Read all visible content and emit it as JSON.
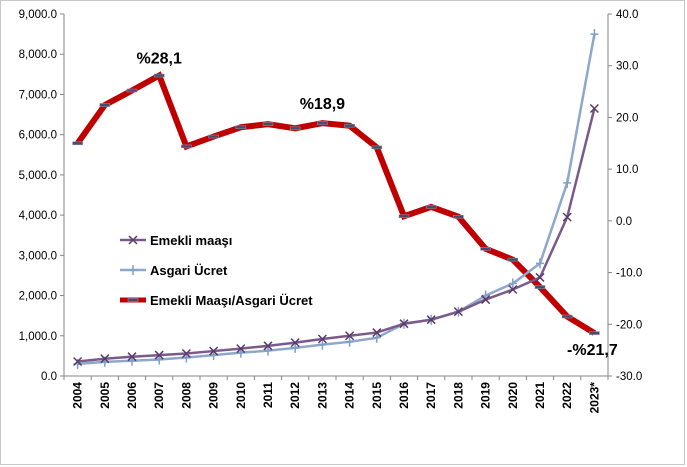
{
  "chart_data": {
    "type": "line",
    "categories": [
      "2004",
      "2005",
      "2006",
      "2007",
      "2008",
      "2009",
      "2010",
      "2011",
      "2012",
      "2013",
      "2014",
      "2015",
      "2016",
      "2017",
      "2018",
      "2019",
      "2020",
      "2021",
      "2022",
      "2023*"
    ],
    "left_axis": {
      "ylim": [
        0,
        9000
      ],
      "ticks": [
        "0.0",
        "1,000.0",
        "2,000.0",
        "3,000.0",
        "4,000.0",
        "5,000.0",
        "6,000.0",
        "7,000.0",
        "8,000.0",
        "9,000.0"
      ]
    },
    "right_axis": {
      "ylim": [
        -30,
        40
      ],
      "ticks": [
        "-30.0",
        "-20.0",
        "-10.0",
        "0.0",
        "10.0",
        "20.0",
        "30.0",
        "40.0"
      ]
    },
    "series": [
      {
        "name": "Emekli maaşı",
        "axis": "left",
        "color": "#7a5a8a",
        "marker": "x",
        "values": [
          360,
          430,
          480,
          520,
          560,
          620,
          680,
          750,
          830,
          920,
          1000,
          1080,
          1300,
          1400,
          1600,
          1900,
          2150,
          2450,
          3950,
          6650
        ]
      },
      {
        "name": "Asgari Ücret",
        "axis": "left",
        "color": "#8ea8cc",
        "marker": "plus",
        "values": [
          300,
          350,
          380,
          410,
          460,
          520,
          580,
          630,
          700,
          780,
          850,
          950,
          1300,
          1400,
          1600,
          2000,
          2300,
          2800,
          4800,
          8500
        ]
      },
      {
        "name": "Emekli Maaşı/Asgari Ücret",
        "axis": "right",
        "color": "#c00000",
        "marker": "dash",
        "values": [
          15.0,
          22.4,
          25.2,
          28.1,
          14.4,
          16.3,
          18.1,
          18.7,
          17.9,
          18.9,
          18.4,
          14.2,
          0.9,
          2.7,
          0.8,
          -5.4,
          -7.5,
          -12.8,
          -18.5,
          -21.7
        ]
      }
    ],
    "annotations": [
      {
        "text": "%28,1",
        "series": 2,
        "index": 3
      },
      {
        "text": "%18,9",
        "series": 2,
        "index": 9
      },
      {
        "text": "-%21,7",
        "series": 2,
        "index": 19
      }
    ],
    "legend": {
      "placement": "center-left"
    }
  }
}
